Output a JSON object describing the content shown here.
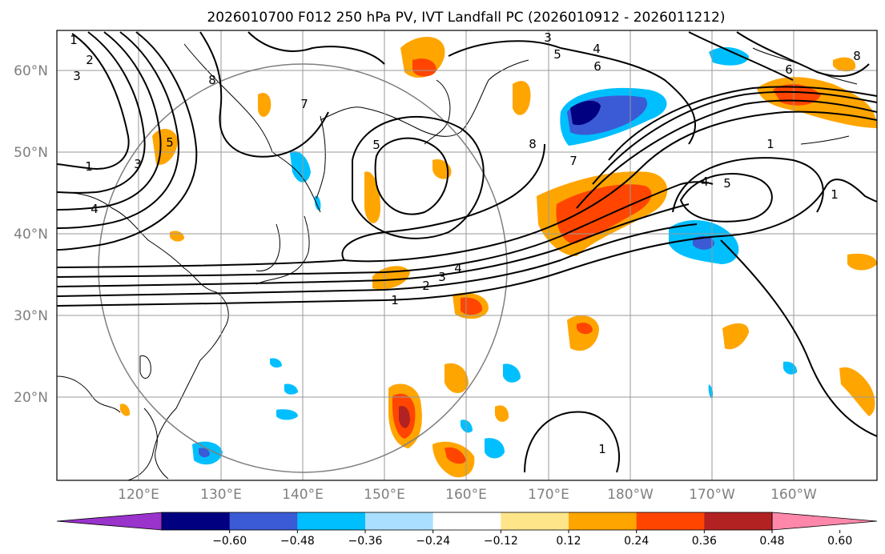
{
  "title": "2026010700 F012 250 hPa PV, IVT Landfall PC (2026010912 - 2026011212)",
  "lat_labels": [
    "60°N",
    "50°N",
    "40°N",
    "30°N",
    "20°N"
  ],
  "lon_labels": [
    "120°E",
    "130°E",
    "140°E",
    "150°E",
    "160°E",
    "170°E",
    "180°W",
    "170°W",
    "160°W"
  ],
  "colorbar": {
    "tick_labels": [
      "−0.60",
      "−0.48",
      "−0.36",
      "−0.24",
      "−0.12",
      "0.12",
      "0.24",
      "0.36",
      "0.48",
      "0.60"
    ],
    "colors": [
      "#9933cc",
      "#000080",
      "#3b5bd6",
      "#00bfff",
      "#aadfff",
      "#ffffff",
      "#ffe58a",
      "#ffa500",
      "#ff4500",
      "#b22222",
      "#ff88aa"
    ]
  },
  "contour_labels": [
    "1",
    "2",
    "3",
    "4",
    "5",
    "6",
    "7",
    "8"
  ],
  "colors": {
    "frame": "#000000",
    "grid": "#9a9a9a",
    "ring": "#7f7f7f"
  }
}
